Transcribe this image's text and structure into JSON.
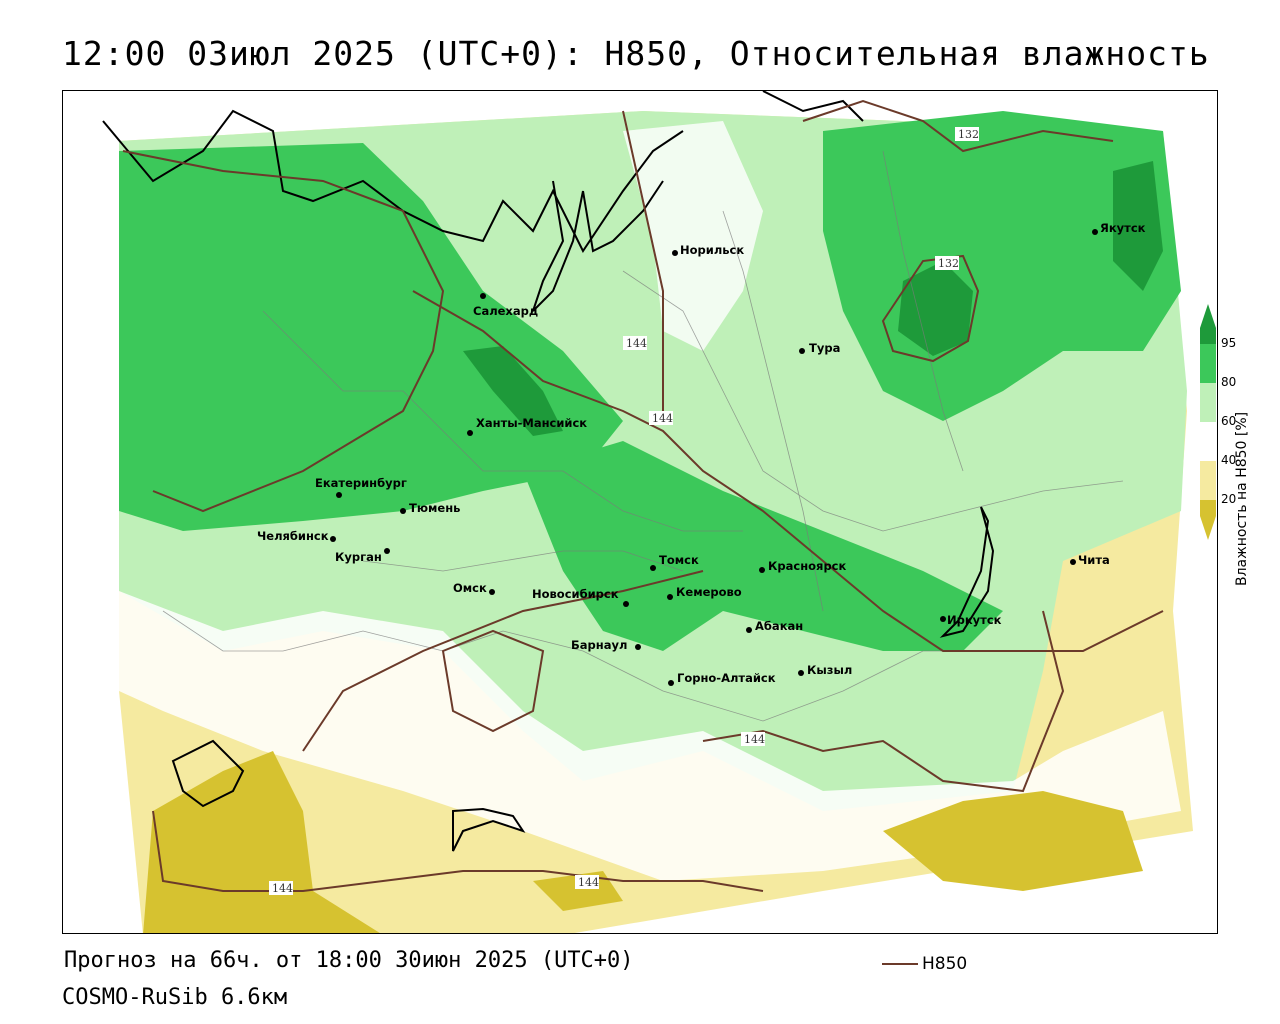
{
  "title": "12:00 03июл 2025 (UTC+0): H850, Относительная влажность",
  "forecast_line": "Прогноз на 66ч. от 18:00 30июн 2025 (UTC+0)",
  "model_line": "COSMO-RuSib 6.6км",
  "legend": {
    "line_label": "H850",
    "line_color": "#6b3a2a"
  },
  "colorbar": {
    "title": "Влажность на H850 [%]",
    "ticks": [
      "20",
      "40",
      "60",
      "80",
      "95"
    ],
    "colors": {
      "below_20": "#d6c230",
      "20_40": "#f5eaa0",
      "40_60": "#ffffff",
      "60_80": "#bff0b8",
      "80_95": "#3cc85a",
      "above_95": "#1e9a3a"
    }
  },
  "cities": [
    {
      "name": "Норильск"
    },
    {
      "name": "Якутск"
    },
    {
      "name": "Салехард"
    },
    {
      "name": "Тура"
    },
    {
      "name": "Ханты-Мансийск"
    },
    {
      "name": "Екатеринбург"
    },
    {
      "name": "Тюмень"
    },
    {
      "name": "Челябинск"
    },
    {
      "name": "Курган"
    },
    {
      "name": "Омск"
    },
    {
      "name": "Новосибирск"
    },
    {
      "name": "Томск"
    },
    {
      "name": "Кемерово"
    },
    {
      "name": "Красноярск"
    },
    {
      "name": "Абакан"
    },
    {
      "name": "Барнаул"
    },
    {
      "name": "Горно-Алтайск"
    },
    {
      "name": "Кызыл"
    },
    {
      "name": "Иркутск"
    },
    {
      "name": "Чита"
    }
  ],
  "isolines": [
    {
      "label": "132"
    },
    {
      "label": "132"
    },
    {
      "label": "144"
    },
    {
      "label": "144"
    },
    {
      "label": "144"
    },
    {
      "label": "144"
    },
    {
      "label": "144"
    }
  ]
}
